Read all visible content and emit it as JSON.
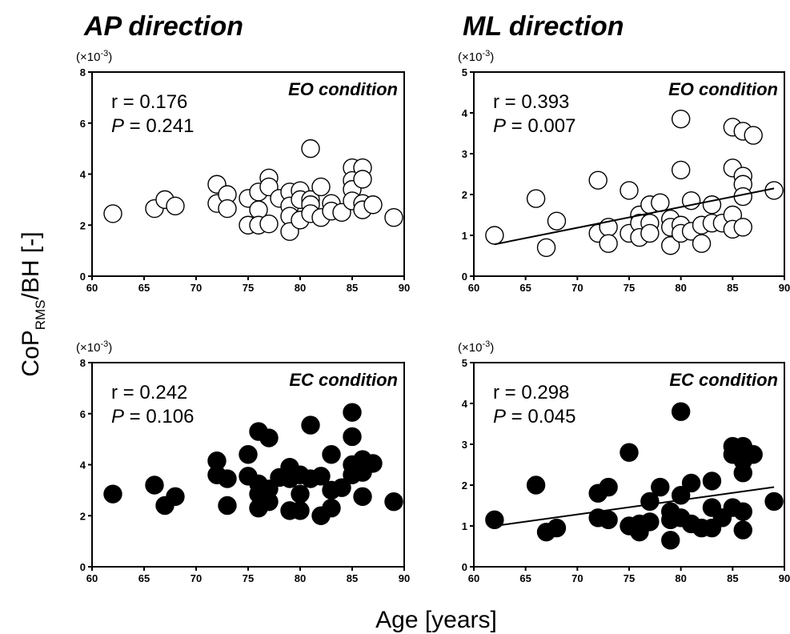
{
  "figure": {
    "column_titles": [
      "AP direction",
      "ML direction"
    ],
    "ylabel": "CoP",
    "ylabel_sub": "RMS",
    "ylabel_rest": "/BH [-]",
    "xlabel": "Age [years]"
  },
  "chart_data": [
    {
      "type": "scatter",
      "direction": "AP direction",
      "condition_label": "EO condition",
      "r_text": "r = 0.176",
      "p_label": "P",
      "p_value": " = 0.241",
      "scale_label": "(×10",
      "scale_exp": "-3",
      "scale_close": ")",
      "marker": "open",
      "xlim": [
        60,
        90
      ],
      "ylim": [
        0,
        8
      ],
      "xticks": [
        60,
        65,
        70,
        75,
        80,
        85,
        90
      ],
      "yticks": [
        0,
        2,
        4,
        6,
        8
      ],
      "regression_line": null,
      "points": [
        [
          62,
          2.45
        ],
        [
          66,
          2.65
        ],
        [
          67,
          3.0
        ],
        [
          68,
          2.75
        ],
        [
          72,
          3.6
        ],
        [
          72,
          2.85
        ],
        [
          73,
          3.2
        ],
        [
          73,
          2.65
        ],
        [
          75,
          3.05
        ],
        [
          75,
          2.0
        ],
        [
          76,
          3.3
        ],
        [
          76,
          2.6
        ],
        [
          76,
          2.0
        ],
        [
          77,
          3.85
        ],
        [
          77,
          3.5
        ],
        [
          77,
          2.05
        ],
        [
          78,
          3.05
        ],
        [
          79,
          3.3
        ],
        [
          79,
          2.75
        ],
        [
          79,
          2.35
        ],
        [
          79,
          1.75
        ],
        [
          80,
          3.35
        ],
        [
          80,
          3.0
        ],
        [
          80,
          2.2
        ],
        [
          81,
          5.0
        ],
        [
          81,
          3.0
        ],
        [
          81,
          2.8
        ],
        [
          81,
          2.45
        ],
        [
          82,
          3.5
        ],
        [
          82,
          2.3
        ],
        [
          83,
          2.85
        ],
        [
          83,
          2.55
        ],
        [
          84,
          2.5
        ],
        [
          85,
          4.25
        ],
        [
          85,
          3.75
        ],
        [
          85,
          3.4
        ],
        [
          85,
          2.95
        ],
        [
          86,
          4.25
        ],
        [
          86,
          3.8
        ],
        [
          86,
          2.85
        ],
        [
          86,
          2.6
        ],
        [
          87,
          2.8
        ],
        [
          89,
          2.3
        ]
      ]
    },
    {
      "type": "scatter",
      "direction": "ML direction",
      "condition_label": "EO condition",
      "r_text": "r = 0.393",
      "p_label": "P",
      "p_value": " = 0.007",
      "scale_label": "(×10",
      "scale_exp": "-3",
      "scale_close": ")",
      "marker": "open",
      "xlim": [
        60,
        90
      ],
      "ylim": [
        0,
        5
      ],
      "xticks": [
        60,
        65,
        70,
        75,
        80,
        85,
        90
      ],
      "yticks": [
        0,
        1,
        2,
        3,
        4,
        5
      ],
      "regression_line": [
        [
          62,
          0.78
        ],
        [
          89,
          2.15
        ]
      ],
      "points": [
        [
          62,
          1.0
        ],
        [
          66,
          1.9
        ],
        [
          67,
          0.7
        ],
        [
          68,
          1.35
        ],
        [
          72,
          2.35
        ],
        [
          72,
          1.05
        ],
        [
          73,
          1.2
        ],
        [
          73,
          0.8
        ],
        [
          75,
          2.1
        ],
        [
          75,
          1.05
        ],
        [
          76,
          1.5
        ],
        [
          76,
          1.3
        ],
        [
          76,
          0.95
        ],
        [
          77,
          1.75
        ],
        [
          77,
          1.3
        ],
        [
          77,
          1.05
        ],
        [
          78,
          1.8
        ],
        [
          79,
          1.4
        ],
        [
          79,
          1.2
        ],
        [
          79,
          0.75
        ],
        [
          80,
          3.85
        ],
        [
          80,
          2.6
        ],
        [
          80,
          1.25
        ],
        [
          80,
          1.05
        ],
        [
          81,
          1.85
        ],
        [
          81,
          1.1
        ],
        [
          82,
          1.25
        ],
        [
          82,
          0.8
        ],
        [
          83,
          1.75
        ],
        [
          83,
          1.3
        ],
        [
          84,
          1.3
        ],
        [
          85,
          3.65
        ],
        [
          85,
          2.65
        ],
        [
          85,
          1.5
        ],
        [
          85,
          1.15
        ],
        [
          86,
          3.55
        ],
        [
          86,
          2.45
        ],
        [
          86,
          2.25
        ],
        [
          86,
          1.95
        ],
        [
          86,
          1.2
        ],
        [
          87,
          3.45
        ],
        [
          89,
          2.1
        ]
      ]
    },
    {
      "type": "scatter",
      "direction": "AP direction",
      "condition_label": "EC condition",
      "r_text": "r = 0.242",
      "p_label": "P",
      "p_value": " = 0.106",
      "scale_label": "(×10",
      "scale_exp": "-3",
      "scale_close": ")",
      "marker": "filled",
      "xlim": [
        60,
        90
      ],
      "ylim": [
        0,
        8
      ],
      "xticks": [
        60,
        65,
        70,
        75,
        80,
        85,
        90
      ],
      "yticks": [
        0,
        2,
        4,
        6,
        8
      ],
      "regression_line": null,
      "points": [
        [
          62,
          2.85
        ],
        [
          66,
          3.2
        ],
        [
          67,
          2.4
        ],
        [
          68,
          2.75
        ],
        [
          72,
          4.15
        ],
        [
          72,
          3.6
        ],
        [
          73,
          3.45
        ],
        [
          73,
          2.4
        ],
        [
          75,
          4.4
        ],
        [
          75,
          3.55
        ],
        [
          76,
          5.3
        ],
        [
          76,
          3.25
        ],
        [
          76,
          2.85
        ],
        [
          76,
          2.3
        ],
        [
          77,
          5.05
        ],
        [
          77,
          3.05
        ],
        [
          77,
          2.55
        ],
        [
          78,
          3.5
        ],
        [
          79,
          3.9
        ],
        [
          79,
          3.45
        ],
        [
          79,
          2.2
        ],
        [
          80,
          3.6
        ],
        [
          80,
          2.85
        ],
        [
          80,
          2.2
        ],
        [
          81,
          5.55
        ],
        [
          81,
          3.45
        ],
        [
          82,
          3.55
        ],
        [
          82,
          2.0
        ],
        [
          83,
          4.4
        ],
        [
          83,
          3.0
        ],
        [
          83,
          2.3
        ],
        [
          84,
          3.1
        ],
        [
          85,
          6.05
        ],
        [
          85,
          5.1
        ],
        [
          85,
          4.0
        ],
        [
          85,
          3.6
        ],
        [
          86,
          4.2
        ],
        [
          86,
          3.7
        ],
        [
          86,
          2.75
        ],
        [
          87,
          4.05
        ],
        [
          89,
          2.55
        ]
      ]
    },
    {
      "type": "scatter",
      "direction": "ML direction",
      "condition_label": "EC condition",
      "r_text": "r = 0.298",
      "p_label": "P",
      "p_value": " = 0.045",
      "scale_label": "(×10",
      "scale_exp": "-3",
      "scale_close": ")",
      "marker": "filled",
      "xlim": [
        60,
        90
      ],
      "ylim": [
        0,
        5
      ],
      "xticks": [
        60,
        65,
        70,
        75,
        80,
        85,
        90
      ],
      "yticks": [
        0,
        1,
        2,
        3,
        4,
        5
      ],
      "regression_line": [
        [
          62,
          1.0
        ],
        [
          89,
          1.95
        ]
      ],
      "points": [
        [
          62,
          1.15
        ],
        [
          66,
          2.0
        ],
        [
          67,
          0.85
        ],
        [
          68,
          0.95
        ],
        [
          72,
          1.8
        ],
        [
          72,
          1.2
        ],
        [
          73,
          1.95
        ],
        [
          73,
          1.15
        ],
        [
          75,
          2.8
        ],
        [
          75,
          1.0
        ],
        [
          76,
          1.05
        ],
        [
          76,
          0.85
        ],
        [
          77,
          1.6
        ],
        [
          77,
          1.1
        ],
        [
          78,
          1.95
        ],
        [
          79,
          1.35
        ],
        [
          79,
          1.15
        ],
        [
          79,
          0.65
        ],
        [
          80,
          3.8
        ],
        [
          80,
          1.75
        ],
        [
          80,
          1.2
        ],
        [
          81,
          2.05
        ],
        [
          81,
          1.05
        ],
        [
          82,
          0.95
        ],
        [
          83,
          2.1
        ],
        [
          83,
          1.45
        ],
        [
          83,
          0.95
        ],
        [
          84,
          1.2
        ],
        [
          85,
          2.95
        ],
        [
          85,
          2.75
        ],
        [
          85,
          1.45
        ],
        [
          86,
          2.95
        ],
        [
          86,
          2.6
        ],
        [
          86,
          2.3
        ],
        [
          86,
          1.35
        ],
        [
          86,
          0.9
        ],
        [
          87,
          2.75
        ],
        [
          89,
          1.6
        ]
      ]
    }
  ]
}
